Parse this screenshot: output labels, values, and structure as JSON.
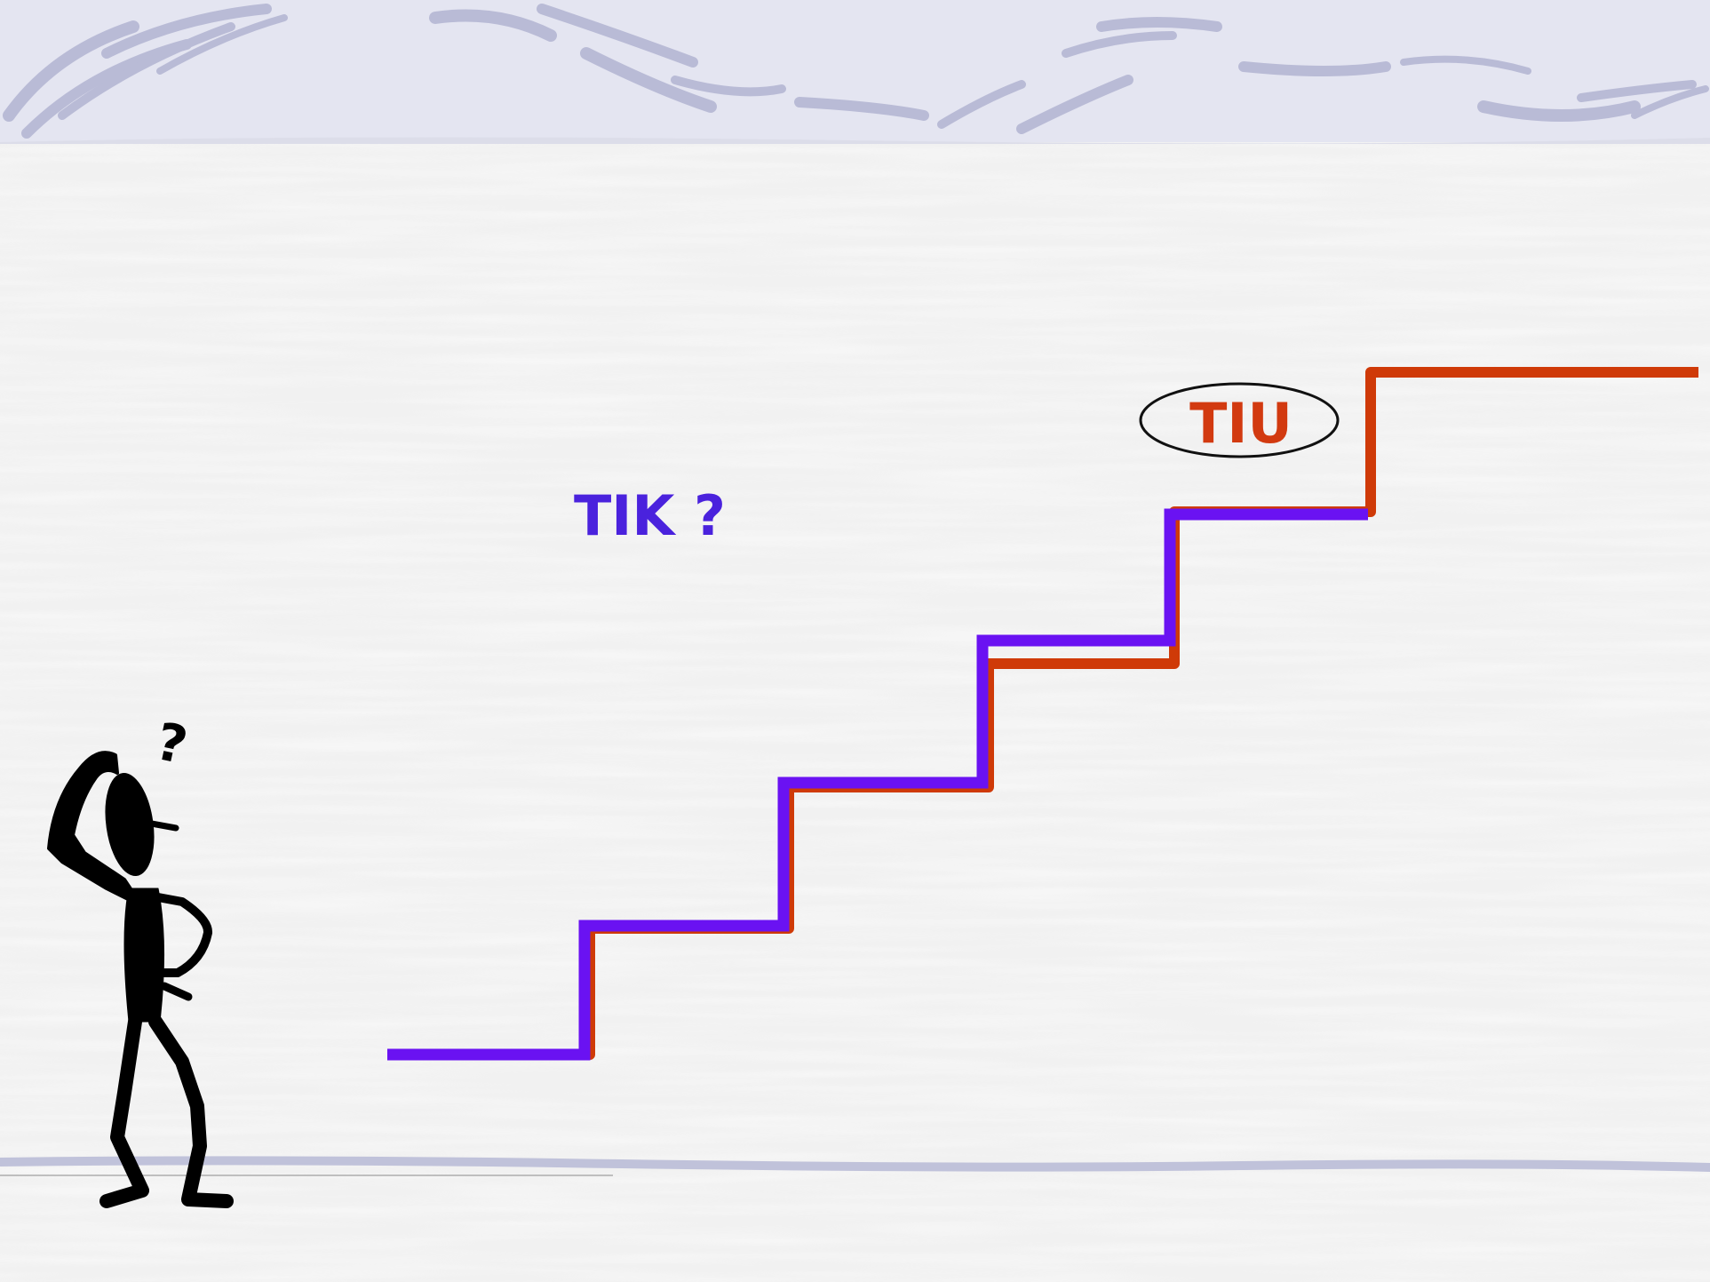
{
  "slide": {
    "labels": {
      "tik": "TIK ?",
      "tiu": "TIU"
    },
    "thought_glyph": "?"
  },
  "colors": {
    "background": "#f1f1f1",
    "banner": "#e4e5f1",
    "banner_swirl": "#b9bbd6",
    "tik": "#4a22dd",
    "tiu": "#d23a10",
    "blue_stair": "#6a12f2",
    "red_stair": "#cf3a08",
    "figure": "#000000"
  },
  "icons": {
    "figure": "thinking-stick-figure-icon",
    "swirl": "swirl-decoration"
  }
}
